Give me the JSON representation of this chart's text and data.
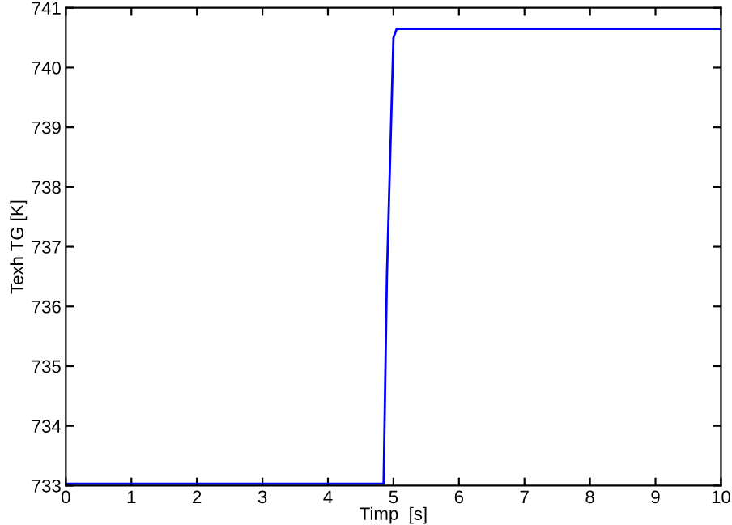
{
  "chart_data": {
    "type": "line",
    "xlabel": "Timp  [s]",
    "ylabel": "Texh TG [K]",
    "series": [
      {
        "color": "#0000ff",
        "x": [
          0,
          4.85,
          4.9,
          5.0,
          5.05,
          10
        ],
        "values": [
          733.03,
          733.03,
          736.5,
          740.5,
          740.65,
          740.65
        ]
      }
    ],
    "xlim": [
      0,
      10
    ],
    "xticks": [
      0,
      1,
      2,
      3,
      4,
      5,
      6,
      7,
      8,
      9,
      10
    ],
    "ylim": [
      733,
      741
    ],
    "yticks": [
      733,
      734,
      735,
      736,
      737,
      738,
      739,
      740,
      741
    ],
    "grid": false,
    "legend": false
  }
}
